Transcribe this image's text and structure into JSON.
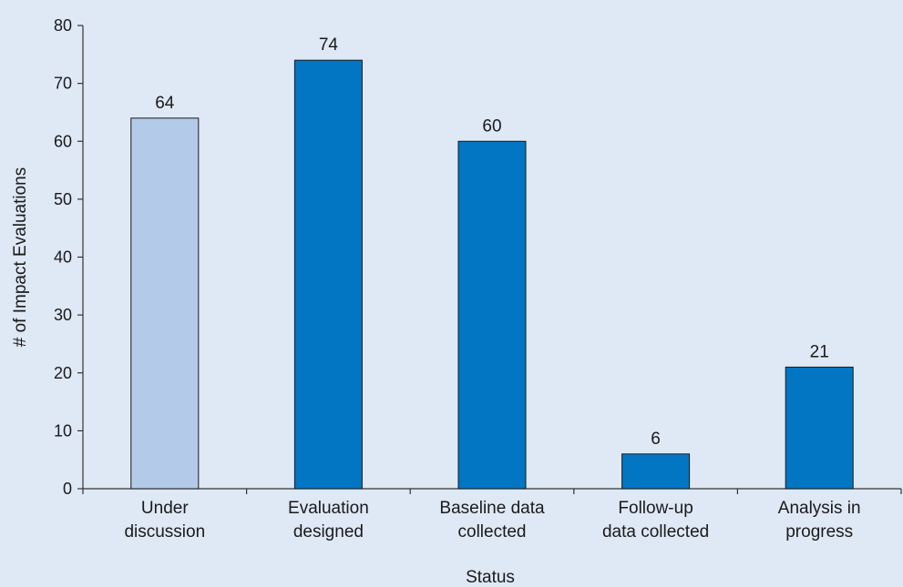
{
  "chart_data": {
    "type": "bar",
    "categories": [
      [
        "Under",
        "discussion"
      ],
      [
        "Evaluation",
        "designed"
      ],
      [
        "Baseline data",
        "collected"
      ],
      [
        "Follow-up",
        "data collected"
      ],
      [
        "Analysis in",
        "progress"
      ]
    ],
    "values": [
      64,
      74,
      60,
      6,
      21
    ],
    "bar_colors": [
      "#b3cbe9",
      "#0276c3",
      "#0276c3",
      "#0276c3",
      "#0276c3"
    ],
    "xlabel": "Status",
    "ylabel": "# of Impact Evaluations",
    "ylim": [
      0,
      80
    ],
    "yticks": [
      0,
      10,
      20,
      30,
      40,
      50,
      60,
      70,
      80
    ],
    "grid": false,
    "data_labels": true
  },
  "background_color": "#dfe8f5",
  "axis_color": "#333333"
}
